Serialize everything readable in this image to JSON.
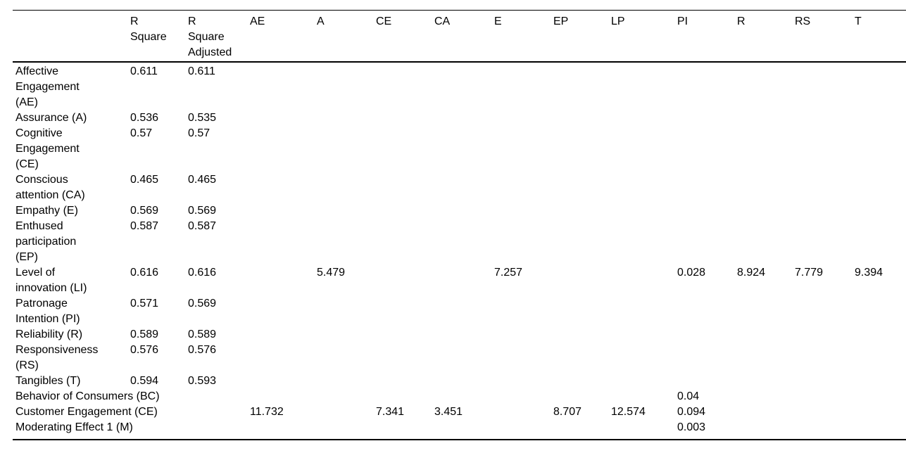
{
  "table": {
    "columns": [
      {
        "key": "label",
        "label": ""
      },
      {
        "key": "r_square",
        "label": "R Square"
      },
      {
        "key": "r_square_adjusted",
        "label": "R Square Adjusted"
      },
      {
        "key": "AE",
        "label": "AE"
      },
      {
        "key": "A",
        "label": "A"
      },
      {
        "key": "CE",
        "label": "CE"
      },
      {
        "key": "CA",
        "label": "CA"
      },
      {
        "key": "E",
        "label": "E"
      },
      {
        "key": "EP",
        "label": "EP"
      },
      {
        "key": "LP",
        "label": "LP"
      },
      {
        "key": "PI",
        "label": "PI"
      },
      {
        "key": "R",
        "label": "R"
      },
      {
        "key": "RS",
        "label": "RS"
      },
      {
        "key": "T",
        "label": "T"
      }
    ],
    "rows": [
      {
        "label": "Affective Engagement (AE)",
        "values": {
          "r_square": "0.611",
          "r_square_adjusted": "0.611"
        }
      },
      {
        "label": "Assurance (A)",
        "values": {
          "r_square": "0.536",
          "r_square_adjusted": "0.535"
        }
      },
      {
        "label": "Cognitive Engagement (CE)",
        "values": {
          "r_square": "0.57",
          "r_square_adjusted": "0.57"
        }
      },
      {
        "label": "Conscious attention (CA)",
        "values": {
          "r_square": "0.465",
          "r_square_adjusted": "0.465"
        }
      },
      {
        "label": "Empathy (E)",
        "values": {
          "r_square": "0.569",
          "r_square_adjusted": "0.569"
        }
      },
      {
        "label": "Enthused participation (EP)",
        "values": {
          "r_square": "0.587",
          "r_square_adjusted": "0.587"
        }
      },
      {
        "label": "Level of innovation (LI)",
        "values": {
          "r_square": "0.616",
          "r_square_adjusted": "0.616",
          "A": "5.479",
          "E": "7.257",
          "PI": "0.028",
          "R": "8.924",
          "RS": "7.779",
          "T": "9.394"
        }
      },
      {
        "label": "Patronage Intention (PI)",
        "values": {
          "r_square": "0.571",
          "r_square_adjusted": "0.569"
        }
      },
      {
        "label": "Reliability (R)",
        "values": {
          "r_square": "0.589",
          "r_square_adjusted": "0.589"
        }
      },
      {
        "label": "Responsiveness (RS)",
        "values": {
          "r_square": "0.576",
          "r_square_adjusted": "0.576"
        }
      },
      {
        "label": "Tangibles (T)",
        "values": {
          "r_square": "0.594",
          "r_square_adjusted": "0.593"
        }
      },
      {
        "label": "Behavior of Consumers (BC)",
        "values": {
          "PI": "0.04"
        }
      },
      {
        "label": "Customer Engagement (CE)",
        "values": {
          "AE": "11.732",
          "CE": "7.341",
          "CA": "3.451",
          "EP": "8.707",
          "LP": "12.574",
          "PI": "0.094"
        }
      },
      {
        "label": "Moderating Effect 1 (M)",
        "values": {
          "PI": "0.003"
        }
      }
    ],
    "colors": {
      "text": "#000000",
      "rule": "#000000",
      "background": "#ffffff"
    }
  }
}
